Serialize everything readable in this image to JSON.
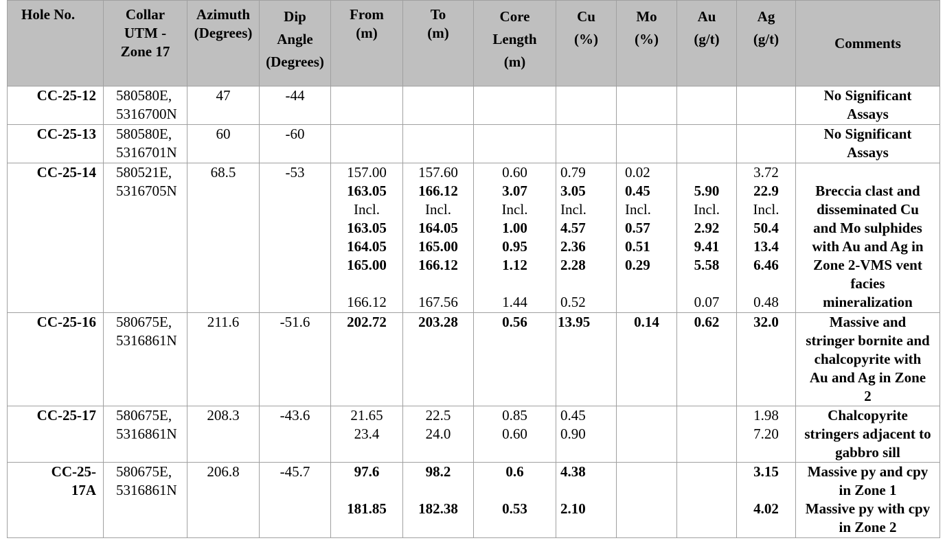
{
  "table": {
    "header": [
      [
        "Hole No."
      ],
      [
        "Collar",
        "UTM -",
        "Zone 17"
      ],
      [
        "Azimuth",
        "(Degrees)"
      ],
      [
        "Dip",
        "Angle",
        "(Degrees)"
      ],
      [
        "From",
        "(m)"
      ],
      [
        "To",
        "(m)"
      ],
      [
        "Core",
        "Length",
        "(m)"
      ],
      [
        "Cu",
        "(%)"
      ],
      [
        "Mo",
        "(%)"
      ],
      [
        "Au",
        "(g/t)"
      ],
      [
        "Ag",
        "(g/t)"
      ],
      [
        "Comments"
      ]
    ],
    "rows": [
      {
        "hole": [
          "CC-25-12"
        ],
        "collar": [
          "580580E,",
          "5316700N"
        ],
        "azimuth": "47",
        "dip": "-44",
        "comments": [
          "No Significant",
          "Assays"
        ]
      },
      {
        "hole": [
          "CC-25-13"
        ],
        "collar": [
          "580580E,",
          "5316701N"
        ],
        "azimuth": "60",
        "dip": "-60",
        "comments": [
          "No Significant",
          "Assays"
        ]
      },
      {
        "hole": [
          "CC-25-14"
        ],
        "collar": [
          "580521E,",
          "5316705N"
        ],
        "azimuth": "68.5",
        "dip": "-53",
        "from": [
          "157.00",
          "163.05",
          "Incl.",
          "163.05",
          "164.05",
          "165.00",
          "166.12"
        ],
        "to": [
          "157.60",
          "166.12",
          "Incl.",
          "164.05",
          "165.00",
          "166.12",
          "167.56"
        ],
        "core": [
          "0.60",
          "3.07",
          "Incl.",
          "1.00",
          "0.95",
          "1.12",
          "1.44"
        ],
        "cu": [
          "0.79",
          "3.05",
          "Incl.",
          "4.57",
          "2.36",
          "2.28",
          "0.52"
        ],
        "mo": [
          "0.02",
          "0.45",
          "Incl.",
          "0.57",
          "0.51",
          "0.29"
        ],
        "au": [
          "5.90",
          "Incl.",
          "2.92",
          "9.41",
          "5.58",
          "0.07"
        ],
        "ag": [
          "3.72",
          "22.9",
          "Incl.",
          "50.4",
          "13.4",
          "6.46",
          "0.48"
        ],
        "comments": [
          "Breccia clast and",
          "disseminated Cu",
          "and Mo sulphides",
          "with Au and Ag in",
          "Zone 2-VMS vent",
          "facies",
          "mineralization"
        ]
      },
      {
        "hole": [
          "CC-25-16"
        ],
        "collar": [
          "580675E,",
          "5316861N"
        ],
        "azimuth": "211.6",
        "dip": "-51.6",
        "from": "202.72",
        "to": "203.28",
        "core": "0.56",
        "cu": "13.95",
        "mo": "0.14",
        "au": "0.62",
        "ag": "32.0",
        "comments": [
          "Massive and",
          "stringer bornite and",
          "chalcopyrite with",
          "Au and Ag in Zone",
          "2"
        ]
      },
      {
        "hole": [
          "CC-25-17"
        ],
        "collar": [
          "580675E,",
          "5316861N"
        ],
        "azimuth": "208.3",
        "dip": "-43.6",
        "from": [
          "21.65",
          "23.4"
        ],
        "to": [
          "22.5",
          "24.0"
        ],
        "core": [
          "0.85",
          "0.60"
        ],
        "cu": [
          "0.45",
          "0.90"
        ],
        "ag": [
          "1.98",
          "7.20"
        ],
        "comments": [
          "Chalcopyrite",
          "stringers adjacent to",
          "gabbro sill"
        ]
      },
      {
        "hole": [
          "CC-25-",
          "17A"
        ],
        "collar": [
          "580675E,",
          "5316861N"
        ],
        "azimuth": "206.8",
        "dip": "-45.7",
        "from": [
          "97.6",
          "181.85"
        ],
        "to": [
          "98.2",
          "182.38"
        ],
        "core": [
          "0.6",
          "0.53"
        ],
        "cu": [
          "4.38",
          "2.10"
        ],
        "ag": [
          "3.15",
          "4.02"
        ],
        "comments": [
          "Massive py and cpy",
          "in Zone 1",
          "Massive py with cpy",
          "in Zone 2"
        ]
      }
    ]
  }
}
